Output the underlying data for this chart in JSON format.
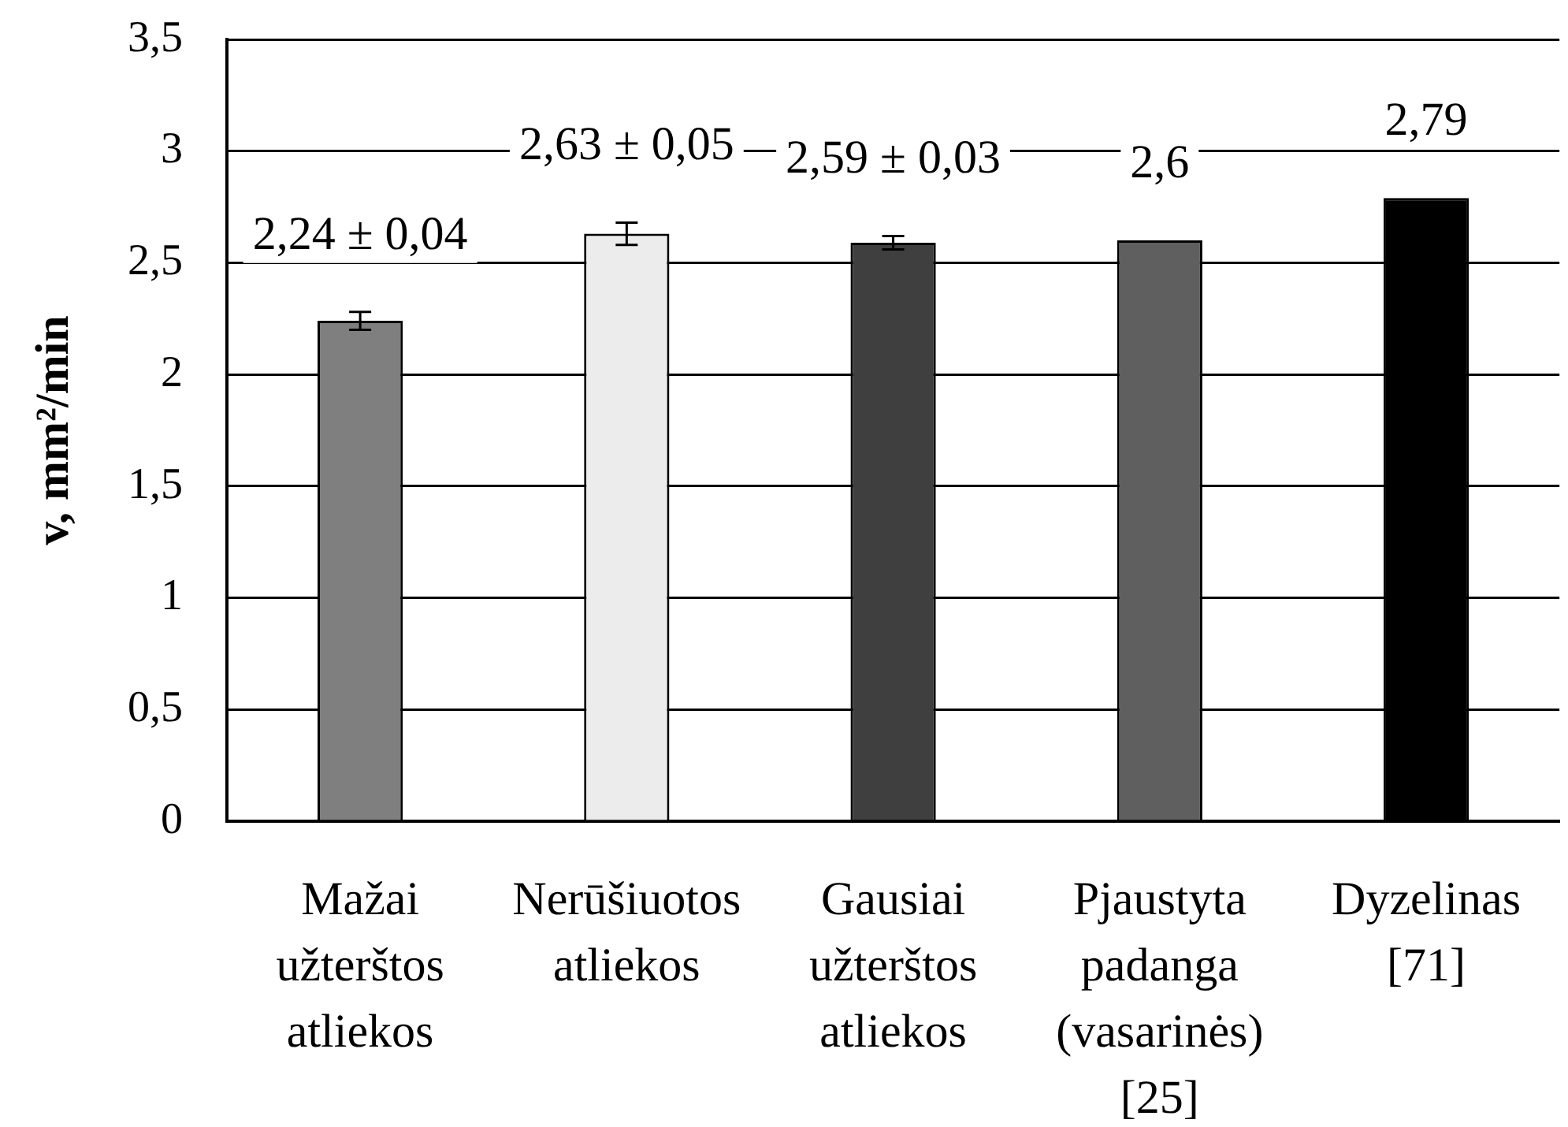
{
  "chart_data": {
    "type": "bar",
    "categories": [
      "Mažai užterštos atliekos",
      "Nerūšiuotos atliekos",
      "Gausiai užterštos atliekos",
      "Pjaustyta padanga (vasarinės) [25]",
      "Dyzelinas [71]"
    ],
    "values": [
      2.24,
      2.63,
      2.59,
      2.6,
      2.79
    ],
    "errors": [
      0.04,
      0.05,
      0.03,
      null,
      null
    ],
    "value_labels": [
      "2,24 ± 0,04",
      "2,63 ± 0,05",
      "2,59 ± 0,03",
      "2,6",
      "2,79"
    ],
    "colors": [
      "#7f7f7f",
      "#ececec",
      "#3f3f3f",
      "#5f5f5f",
      "#000000"
    ],
    "ylabel": "v, mm²/min",
    "ylim": [
      0,
      3.5
    ],
    "yticks": [
      0,
      {
        "value": 0.5,
        "label": "0,5"
      },
      1,
      {
        "value": 1.5,
        "label": "1,5"
      },
      2,
      {
        "value": 2.5,
        "label": "2,5"
      },
      3,
      {
        "value": 3.5,
        "label": "3,5"
      }
    ],
    "grid": "y"
  }
}
